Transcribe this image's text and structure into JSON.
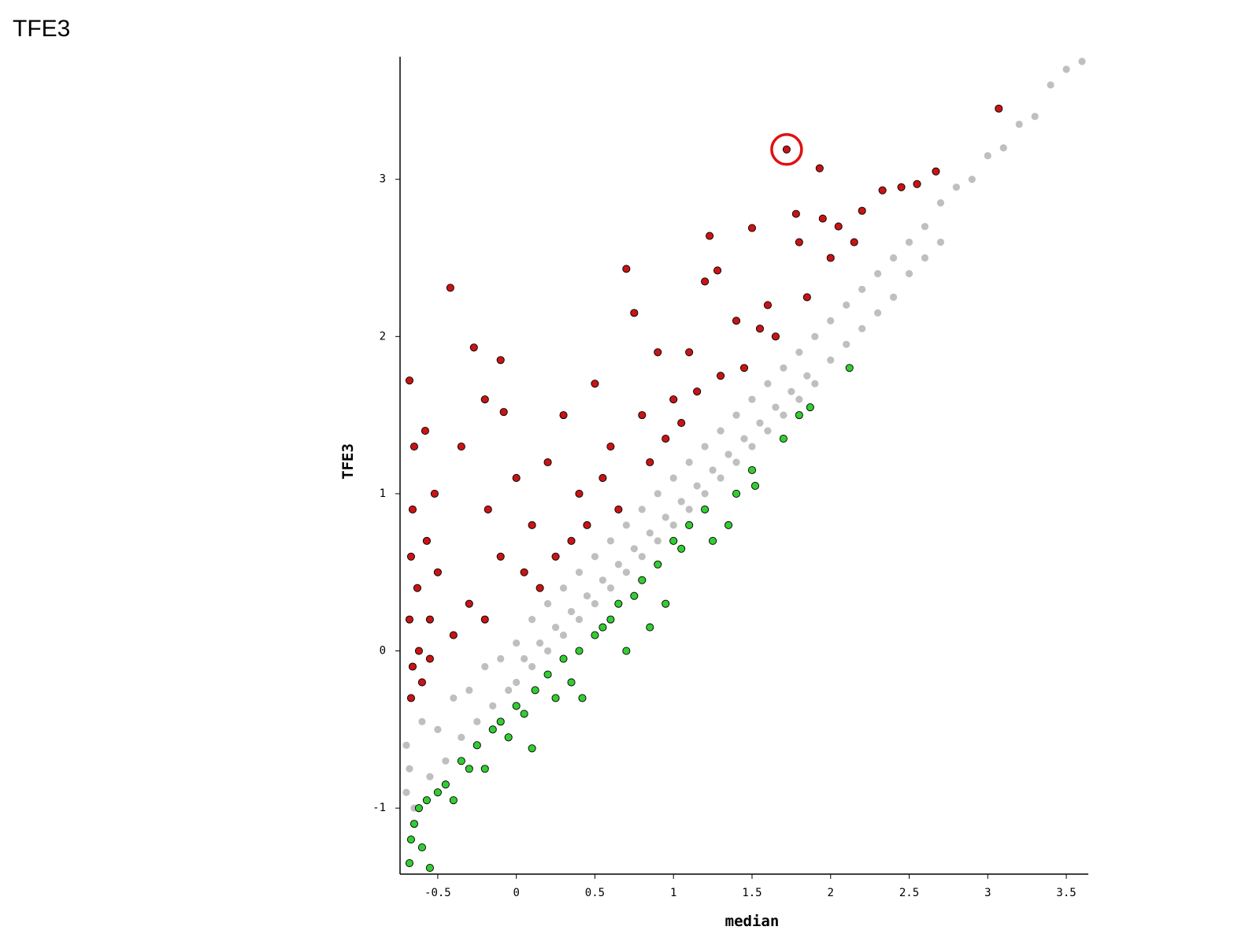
{
  "chart_data": {
    "type": "scatter",
    "title": "TFE3",
    "xlabel": "median",
    "ylabel": "TFE3",
    "xlim": [
      -0.74,
      3.64
    ],
    "ylim": [
      -1.42,
      3.78
    ],
    "xticks": [
      -0.5,
      0,
      0.5,
      1,
      1.5,
      2,
      2.5,
      3,
      3.5
    ],
    "yticks": [
      -1,
      0,
      1,
      2,
      3
    ],
    "grid": false,
    "circled_point": {
      "x": 1.72,
      "y": 3.19,
      "color": "#e01010"
    },
    "series": [
      {
        "color": "#bfbfbf",
        "edge": "none",
        "x": [
          -0.7,
          -0.7,
          -0.68,
          -0.65,
          -0.6,
          -0.55,
          -0.5,
          -0.45,
          -0.4,
          -0.35,
          -0.3,
          -0.25,
          -0.2,
          -0.15,
          -0.1,
          -0.05,
          0,
          0,
          0.05,
          0.1,
          0.1,
          0.15,
          0.2,
          0.2,
          0.25,
          0.3,
          0.3,
          0.35,
          0.4,
          0.4,
          0.45,
          0.5,
          0.5,
          0.55,
          0.6,
          0.6,
          0.65,
          0.7,
          0.7,
          0.75,
          0.8,
          0.8,
          0.85,
          0.9,
          0.9,
          0.95,
          1.0,
          1.0,
          1.05,
          1.1,
          1.1,
          1.15,
          1.2,
          1.2,
          1.25,
          1.3,
          1.3,
          1.35,
          1.4,
          1.4,
          1.45,
          1.5,
          1.5,
          1.55,
          1.6,
          1.6,
          1.65,
          1.7,
          1.7,
          1.75,
          1.8,
          1.8,
          1.85,
          1.9,
          1.9,
          2.0,
          2.0,
          2.1,
          2.1,
          2.2,
          2.2,
          2.3,
          2.3,
          2.4,
          2.4,
          2.5,
          2.5,
          2.6,
          2.6,
          2.7,
          2.7,
          2.8,
          2.9,
          3.0,
          3.1,
          3.2,
          3.3,
          3.4,
          3.5,
          3.6
        ],
        "values": [
          -0.9,
          -0.6,
          -0.75,
          -1.0,
          -0.45,
          -0.8,
          -0.5,
          -0.7,
          -0.3,
          -0.55,
          -0.25,
          -0.45,
          -0.1,
          -0.35,
          -0.05,
          -0.25,
          0.05,
          -0.2,
          -0.05,
          0.2,
          -0.1,
          0.05,
          0.3,
          0.0,
          0.15,
          0.4,
          0.1,
          0.25,
          0.5,
          0.2,
          0.35,
          0.6,
          0.3,
          0.45,
          0.7,
          0.4,
          0.55,
          0.8,
          0.5,
          0.65,
          0.9,
          0.6,
          0.75,
          1.0,
          0.7,
          0.85,
          1.1,
          0.8,
          0.95,
          1.2,
          0.9,
          1.05,
          1.3,
          1.0,
          1.15,
          1.4,
          1.1,
          1.25,
          1.5,
          1.2,
          1.35,
          1.6,
          1.3,
          1.45,
          1.7,
          1.4,
          1.55,
          1.8,
          1.5,
          1.65,
          1.9,
          1.6,
          1.75,
          2.0,
          1.7,
          2.1,
          1.85,
          2.2,
          1.95,
          2.3,
          2.05,
          2.4,
          2.15,
          2.5,
          2.25,
          2.6,
          2.4,
          2.7,
          2.5,
          2.85,
          2.6,
          2.95,
          3.0,
          3.15,
          3.2,
          3.35,
          3.4,
          3.6,
          3.7,
          3.75
        ]
      },
      {
        "color": "#c81414",
        "edge": "#000000",
        "x": [
          -0.68,
          -0.65,
          -0.66,
          -0.67,
          -0.68,
          -0.66,
          -0.67,
          -0.63,
          -0.62,
          -0.6,
          -0.58,
          -0.57,
          -0.55,
          -0.55,
          -0.52,
          -0.5,
          -0.42,
          -0.35,
          -0.27,
          -0.2,
          -0.18,
          -0.1,
          -0.08,
          -0.4,
          -0.3,
          -0.2,
          -0.1,
          0,
          0.05,
          0.1,
          0.15,
          0.2,
          0.25,
          0.3,
          0.35,
          0.4,
          0.45,
          0.5,
          0.55,
          0.6,
          0.65,
          0.7,
          0.75,
          0.8,
          0.85,
          0.9,
          0.95,
          1.0,
          1.05,
          1.1,
          1.15,
          1.2,
          1.23,
          1.28,
          1.3,
          1.4,
          1.45,
          1.5,
          1.55,
          1.6,
          1.65,
          1.72,
          1.78,
          1.8,
          1.85,
          1.93,
          1.95,
          2.0,
          2.05,
          2.15,
          2.2,
          2.33,
          2.45,
          2.55,
          2.67,
          3.07
        ],
        "values": [
          1.72,
          1.3,
          0.9,
          0.6,
          0.2,
          -0.1,
          -0.3,
          0.4,
          0.0,
          -0.2,
          1.4,
          0.7,
          0.2,
          -0.05,
          1.0,
          0.5,
          2.31,
          1.3,
          1.93,
          1.6,
          0.9,
          1.85,
          1.52,
          0.1,
          0.3,
          0.2,
          0.6,
          1.1,
          0.5,
          0.8,
          0.4,
          1.2,
          0.6,
          1.5,
          0.7,
          1.0,
          0.8,
          1.7,
          1.1,
          1.3,
          0.9,
          2.43,
          2.15,
          1.5,
          1.2,
          1.9,
          1.35,
          1.6,
          1.45,
          1.9,
          1.65,
          2.35,
          2.64,
          2.42,
          1.75,
          2.1,
          1.8,
          2.69,
          2.05,
          2.2,
          2.0,
          3.19,
          2.78,
          2.6,
          2.25,
          3.07,
          2.75,
          2.5,
          2.7,
          2.6,
          2.8,
          2.93,
          2.95,
          2.97,
          3.05,
          3.45
        ]
      },
      {
        "color": "#33cc33",
        "edge": "#000000",
        "x": [
          -0.68,
          -0.67,
          -0.65,
          -0.62,
          -0.6,
          -0.57,
          -0.55,
          -0.5,
          -0.45,
          -0.4,
          -0.35,
          -0.3,
          -0.25,
          -0.2,
          -0.15,
          -0.1,
          -0.05,
          0,
          0.05,
          0.1,
          0.12,
          0.2,
          0.25,
          0.3,
          0.35,
          0.4,
          0.42,
          0.5,
          0.55,
          0.6,
          0.65,
          0.7,
          0.75,
          0.8,
          0.85,
          0.9,
          0.95,
          1.0,
          1.05,
          1.1,
          1.2,
          1.25,
          1.35,
          1.4,
          1.5,
          1.52,
          1.7,
          1.8,
          1.87,
          2.12
        ],
        "values": [
          -1.35,
          -1.2,
          -1.1,
          -1.0,
          -1.25,
          -0.95,
          -1.38,
          -0.9,
          -0.85,
          -0.95,
          -0.7,
          -0.75,
          -0.6,
          -0.75,
          -0.5,
          -0.45,
          -0.55,
          -0.35,
          -0.4,
          -0.62,
          -0.25,
          -0.15,
          -0.3,
          -0.05,
          -0.2,
          0.0,
          -0.3,
          0.1,
          0.15,
          0.2,
          0.3,
          0.0,
          0.35,
          0.45,
          0.15,
          0.55,
          0.3,
          0.7,
          0.65,
          0.8,
          0.9,
          0.7,
          0.8,
          1.0,
          1.15,
          1.05,
          1.35,
          1.5,
          1.55,
          1.8
        ]
      }
    ]
  }
}
